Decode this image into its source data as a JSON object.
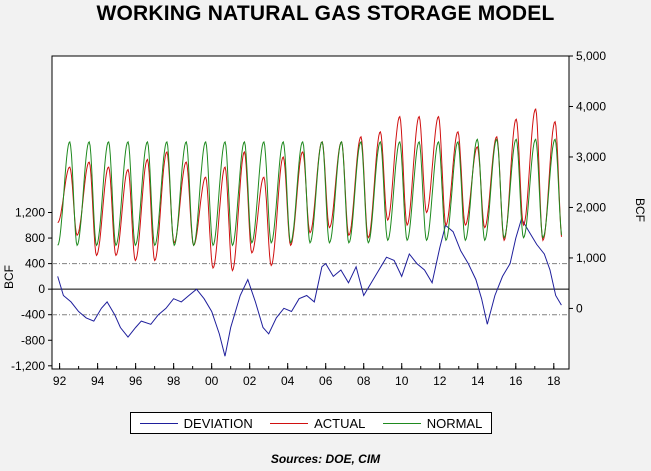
{
  "chart_data": {
    "type": "line",
    "title": "WORKING NATURAL GAS STORAGE MODEL",
    "source": "Sources:  DOE, CIM",
    "left_axis": {
      "label": "BCF",
      "ticks": [
        -1200,
        -800,
        -400,
        0,
        400,
        800,
        1200
      ],
      "tick_labels": [
        "-1,200",
        "-800",
        "-400",
        "0",
        "400",
        "800",
        "1,200"
      ],
      "range": [
        -1250,
        3650
      ]
    },
    "right_axis": {
      "label": "BCF",
      "ticks": [
        0,
        1000,
        2000,
        3000,
        4000,
        5000
      ],
      "tick_labels": [
        "0",
        "1,000",
        "2,000",
        "3,000",
        "4,000",
        "5,000"
      ],
      "range": [
        -1200,
        5000
      ]
    },
    "x_axis": {
      "range": [
        1991.6,
        2018.8
      ],
      "ticks": [
        1992,
        1994,
        1996,
        1998,
        2000,
        2002,
        2004,
        2006,
        2008,
        2010,
        2012,
        2014,
        2016,
        2018
      ],
      "tick_labels": [
        "92",
        "94",
        "96",
        "98",
        "00",
        "02",
        "04",
        "06",
        "08",
        "10",
        "12",
        "14",
        "16",
        "18"
      ]
    },
    "reference_lines": [
      400,
      -400
    ],
    "series": [
      {
        "name": "DEVIATION",
        "axis": "left",
        "color": "#1f1f9c",
        "x": [
          1991.9,
          1992.2,
          1992.6,
          1993.0,
          1993.4,
          1993.8,
          1994.2,
          1994.5,
          1994.9,
          1995.2,
          1995.6,
          1996.0,
          1996.3,
          1996.8,
          1997.2,
          1997.6,
          1998.0,
          1998.4,
          1998.8,
          1999.2,
          1999.6,
          2000.0,
          2000.4,
          2000.7,
          2001.0,
          2001.5,
          2001.9,
          2002.3,
          2002.7,
          2003.0,
          2003.4,
          2003.8,
          2004.2,
          2004.6,
          2005.0,
          2005.4,
          2005.8,
          2006.0,
          2006.4,
          2006.8,
          2007.2,
          2007.6,
          2008.0,
          2008.4,
          2008.8,
          2009.2,
          2009.6,
          2010.0,
          2010.4,
          2010.8,
          2011.2,
          2011.6,
          2012.0,
          2012.3,
          2012.7,
          2013.1,
          2013.5,
          2013.9,
          2014.2,
          2014.5,
          2014.9,
          2015.3,
          2015.7,
          2016.0,
          2016.3,
          2016.7,
          2017.1,
          2017.5,
          2017.8,
          2018.1,
          2018.4
        ],
        "values": [
          200,
          -100,
          -200,
          -350,
          -450,
          -500,
          -300,
          -200,
          -400,
          -600,
          -750,
          -600,
          -500,
          -550,
          -400,
          -300,
          -150,
          -200,
          -100,
          0,
          -150,
          -350,
          -700,
          -1050,
          -600,
          -100,
          150,
          -200,
          -600,
          -700,
          -450,
          -300,
          -350,
          -150,
          -100,
          -200,
          350,
          400,
          200,
          300,
          100,
          350,
          -100,
          100,
          300,
          500,
          450,
          200,
          550,
          400,
          300,
          100,
          650,
          1000,
          900,
          600,
          400,
          150,
          -150,
          -550,
          -100,
          200,
          400,
          800,
          1100,
          900,
          700,
          550,
          300,
          -100,
          -250
        ]
      },
      {
        "name": "ACTUAL",
        "axis": "right",
        "color": "#d01010",
        "x_start": 1991.9,
        "x_end": 2018.45,
        "troughs": [
          1700,
          1450,
          1050,
          1050,
          950,
          950,
          1300,
          1250,
          800,
          750,
          1100,
          850,
          1250,
          1500,
          1600,
          1450,
          1400,
          1750,
          1650,
          1900,
          1650,
          1650,
          1600,
          1350,
          1650,
          1350
        ],
        "peaks": [
          2800,
          2900,
          2800,
          2750,
          2950,
          3100,
          2900,
          2600,
          2800,
          3100,
          2600,
          3000,
          3100,
          3300,
          3300,
          3400,
          3500,
          3800,
          3800,
          3800,
          3500,
          3200,
          3400,
          3750,
          3950,
          3700
        ]
      },
      {
        "name": "NORMAL",
        "axis": "right",
        "color": "#1f8a1f",
        "x_start": 1991.9,
        "x_end": 2018.45,
        "troughs": [
          1250,
          1250,
          1250,
          1250,
          1250,
          1250,
          1250,
          1250,
          1250,
          1250,
          1300,
          1300,
          1300,
          1300,
          1300,
          1300,
          1300,
          1350,
          1350,
          1350,
          1350,
          1350,
          1350,
          1400,
          1400,
          1400
        ],
        "peaks": [
          3300,
          3300,
          3300,
          3300,
          3300,
          3300,
          3300,
          3300,
          3300,
          3300,
          3300,
          3300,
          3300,
          3300,
          3300,
          3300,
          3300,
          3300,
          3300,
          3300,
          3300,
          3350,
          3350,
          3350,
          3350,
          3350
        ]
      }
    ],
    "legend_position": "bottom"
  }
}
